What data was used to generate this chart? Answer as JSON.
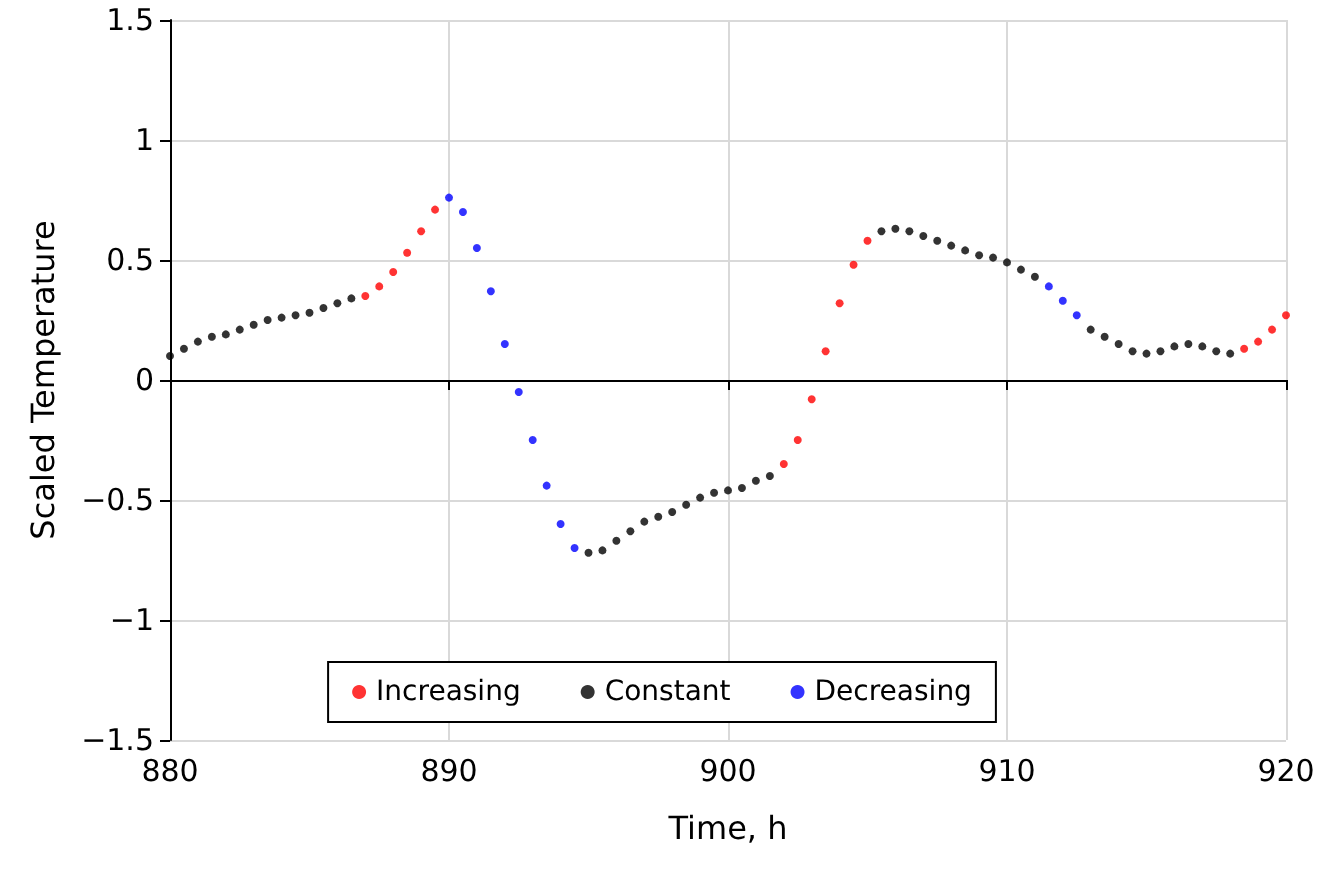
{
  "chart_data": {
    "type": "scatter",
    "xlabel": "Time, h",
    "ylabel": "Scaled Temperature",
    "xlim": [
      880,
      920
    ],
    "xticks": [
      880,
      890,
      900,
      910,
      920
    ],
    "ylim": [
      -1.5,
      1.5
    ],
    "yticks": [
      {
        "value": -1.5,
        "label": "−1.5"
      },
      {
        "value": -1,
        "label": "−1"
      },
      {
        "value": -0.5,
        "label": "−0.5"
      },
      0,
      0.5,
      1,
      1.5
    ],
    "grid": true,
    "legend": "bottom",
    "marker": "circle",
    "series": [
      {
        "name": "Increasing",
        "color": "#ff0000",
        "x": [
          887,
          887.5,
          888,
          888.5,
          889,
          889.5,
          902,
          902.5,
          903,
          903.5,
          904,
          904.5,
          905,
          918.5,
          919,
          919.5,
          920
        ],
        "values": [
          0.35,
          0.39,
          0.45,
          0.53,
          0.62,
          0.71,
          -0.35,
          -0.25,
          -0.08,
          0.12,
          0.32,
          0.48,
          0.58,
          0.13,
          0.16,
          0.21,
          0.27
        ]
      },
      {
        "name": "Constant",
        "color": "#000000",
        "x": [
          880,
          880.5,
          881,
          881.5,
          882,
          882.5,
          883,
          883.5,
          884,
          884.5,
          885,
          885.5,
          886,
          886.5,
          895,
          895.5,
          896,
          896.5,
          897,
          897.5,
          898,
          898.5,
          899,
          899.5,
          900,
          900.5,
          901,
          901.5,
          905.5,
          906,
          906.5,
          907,
          907.5,
          908,
          908.5,
          909,
          909.5,
          910,
          910.5,
          911,
          913,
          913.5,
          914,
          914.5,
          915,
          915.5,
          916,
          916.5,
          917,
          917.5,
          918
        ],
        "values": [
          0.1,
          0.13,
          0.16,
          0.18,
          0.19,
          0.21,
          0.23,
          0.25,
          0.26,
          0.27,
          0.28,
          0.3,
          0.32,
          0.34,
          -0.72,
          -0.71,
          -0.67,
          -0.63,
          -0.59,
          -0.57,
          -0.55,
          -0.52,
          -0.49,
          -0.47,
          -0.46,
          -0.45,
          -0.42,
          -0.4,
          0.62,
          0.63,
          0.62,
          0.6,
          0.58,
          0.56,
          0.54,
          0.52,
          0.51,
          0.49,
          0.46,
          0.43,
          0.21,
          0.18,
          0.15,
          0.12,
          0.11,
          0.12,
          0.14,
          0.15,
          0.14,
          0.12,
          0.11
        ]
      },
      {
        "name": "Decreasing",
        "color": "#0000ff",
        "x": [
          890,
          890.5,
          891,
          891.5,
          892,
          892.5,
          893,
          893.5,
          894,
          894.5,
          911.5,
          912,
          912.5
        ],
        "values": [
          0.76,
          0.7,
          0.55,
          0.37,
          0.15,
          -0.05,
          -0.25,
          -0.44,
          -0.6,
          -0.7,
          0.39,
          0.33,
          0.27
        ]
      }
    ]
  }
}
